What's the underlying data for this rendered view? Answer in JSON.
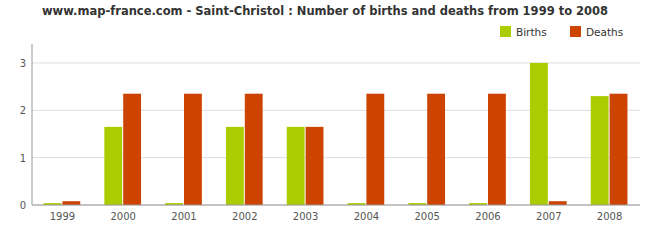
{
  "chart_data": {
    "type": "bar",
    "title": "www.map-france.com - Saint-Christol : Number of births and deaths from 1999 to 2008",
    "categories": [
      "1999",
      "2000",
      "2001",
      "2002",
      "2003",
      "2004",
      "2005",
      "2006",
      "2007",
      "2008"
    ],
    "series": [
      {
        "name": "Births",
        "color": "#aacc00",
        "values": [
          0.04,
          1.65,
          0.04,
          1.65,
          1.65,
          0.04,
          0.04,
          0.04,
          3.0,
          2.3
        ]
      },
      {
        "name": "Deaths",
        "color": "#cc4400",
        "values": [
          0.08,
          2.35,
          2.35,
          2.35,
          1.65,
          2.35,
          2.35,
          2.35,
          0.08,
          2.35
        ]
      }
    ],
    "ylim": [
      0,
      3.4
    ],
    "yticks": [
      0,
      1,
      2,
      3
    ],
    "grid": true,
    "legend": "upper right"
  }
}
